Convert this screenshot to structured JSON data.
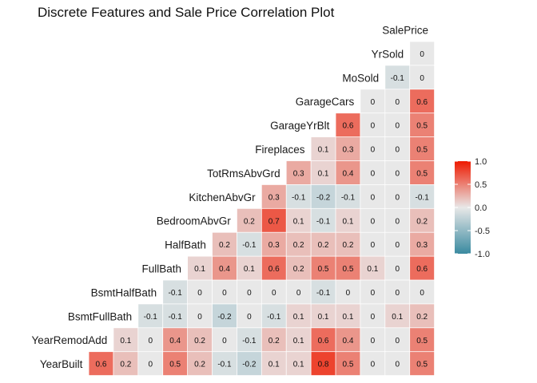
{
  "chart_data": {
    "type": "heatmap",
    "title": "Discrete Features and Sale Price Correlation Plot",
    "variables": [
      "YearBuilt",
      "YearRemodAdd",
      "BsmtFullBath",
      "BsmtHalfBath",
      "FullBath",
      "HalfBath",
      "BedroomAbvGr",
      "KitchenAbvGr",
      "TotRmsAbvGrd",
      "Fireplaces",
      "GarageYrBlt",
      "GarageCars",
      "MoSold",
      "YrSold",
      "SalePrice"
    ],
    "rows": [
      {
        "label": "YearBuilt",
        "values": [
          0.6,
          0.2,
          0,
          0.5,
          0.2,
          -0.1,
          -0.2,
          0.1,
          0.1,
          0.8,
          0.5,
          0,
          0,
          0.5
        ]
      },
      {
        "label": "YearRemodAdd",
        "values": [
          0.1,
          0,
          0.4,
          0.2,
          0,
          -0.1,
          0.2,
          0.1,
          0.6,
          0.4,
          0,
          0,
          0.5
        ]
      },
      {
        "label": "BsmtFullBath",
        "values": [
          -0.1,
          -0.1,
          0,
          -0.2,
          0,
          -0.1,
          0.1,
          0.1,
          0.1,
          0,
          0.1,
          0.2
        ]
      },
      {
        "label": "BsmtHalfBath",
        "values": [
          -0.1,
          0,
          0,
          0,
          0,
          0,
          -0.1,
          0,
          0,
          0,
          0
        ]
      },
      {
        "label": "FullBath",
        "values": [
          0.1,
          0.4,
          0.1,
          0.6,
          0.2,
          0.5,
          0.5,
          0.1,
          0,
          0.6
        ]
      },
      {
        "label": "HalfBath",
        "values": [
          0.2,
          -0.1,
          0.3,
          0.2,
          0.2,
          0.2,
          0,
          0,
          0.3
        ]
      },
      {
        "label": "BedroomAbvGr",
        "values": [
          0.2,
          0.7,
          0.1,
          -0.1,
          0.1,
          0,
          0,
          0.2
        ]
      },
      {
        "label": "KitchenAbvGr",
        "values": [
          0.3,
          -0.1,
          -0.2,
          -0.1,
          0,
          0,
          -0.1
        ]
      },
      {
        "label": "TotRmsAbvGrd",
        "values": [
          0.3,
          0.1,
          0.4,
          0,
          0,
          0.5
        ]
      },
      {
        "label": "Fireplaces",
        "values": [
          0.1,
          0.3,
          0,
          0,
          0.5
        ]
      },
      {
        "label": "GarageYrBlt",
        "values": [
          0.6,
          0,
          0,
          0.5
        ]
      },
      {
        "label": "GarageCars",
        "values": [
          0,
          0,
          0.6
        ]
      },
      {
        "label": "MoSold",
        "values": [
          -0.1,
          0
        ]
      },
      {
        "label": "YrSold",
        "values": [
          0
        ]
      },
      {
        "label": "SalePrice",
        "values": []
      }
    ],
    "color_scale": {
      "low": -1.0,
      "mid": 0.0,
      "high": 1.0,
      "low_color": "#3a8aa0",
      "mid_color": "#e8e8e8",
      "high_color": "#ee1a00"
    },
    "legend": {
      "position": "right",
      "ticks": [
        "1.0",
        "0.5",
        "0.0",
        "-0.5",
        "-1.0"
      ]
    },
    "grid": false
  }
}
